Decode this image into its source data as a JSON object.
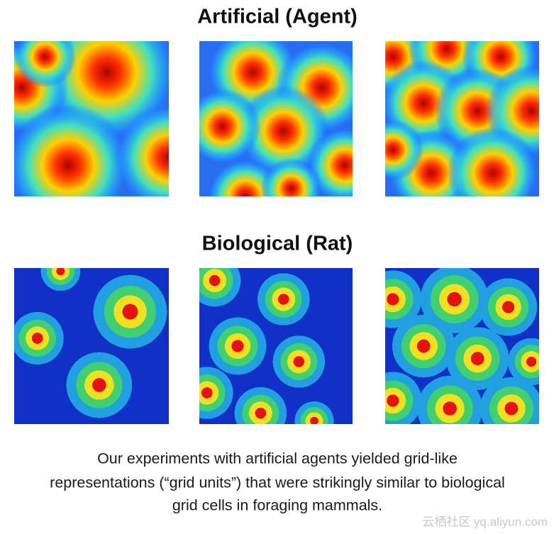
{
  "header": {
    "title": "Artificial (Agent)"
  },
  "section": {
    "title": "Biological (Rat)"
  },
  "caption": {
    "lines": [
      "Our experiments with artificial agents yielded grid-like",
      "representations (“grid units”) that were strikingly similar to biological",
      "grid cells in foraging mammals."
    ]
  },
  "watermark": "云栖社区 yq.aliyun.com"
}
